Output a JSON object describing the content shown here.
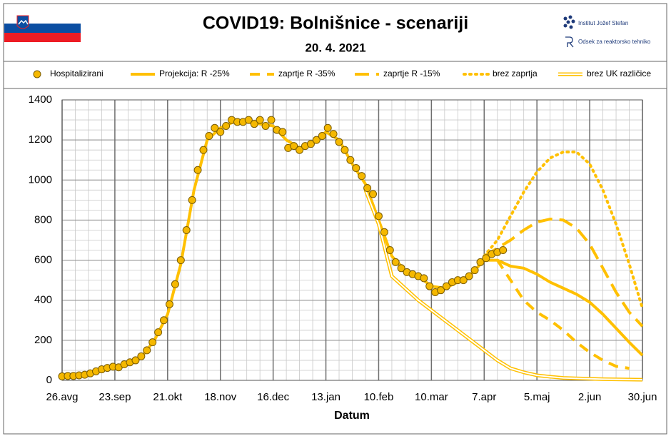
{
  "chart_data": {
    "type": "line",
    "title": "COVID19: Bolnišnice - scenariji",
    "subtitle": "20. 4. 2021",
    "institutions": [
      "Institut Jožef Stefan",
      "Odsek za reaktorsko tehniko"
    ],
    "xlabel": "Datum",
    "xlim": [
      0,
      308
    ],
    "xticks": [
      {
        "value": 0,
        "label": "26.avg"
      },
      {
        "value": 28,
        "label": "23.sep"
      },
      {
        "value": 56,
        "label": "21.okt"
      },
      {
        "value": 84,
        "label": "18.nov"
      },
      {
        "value": 112,
        "label": "16.dec"
      },
      {
        "value": 140,
        "label": "13.jan"
      },
      {
        "value": 168,
        "label": "10.feb"
      },
      {
        "value": 196,
        "label": "10.mar"
      },
      {
        "value": 224,
        "label": "7.apr"
      },
      {
        "value": 252,
        "label": "5.maj"
      },
      {
        "value": 280,
        "label": "2.jun"
      },
      {
        "value": 308,
        "label": "30.jun"
      }
    ],
    "x_minor_step": 7,
    "ylim": [
      0,
      1400
    ],
    "yticks": [
      0,
      200,
      400,
      600,
      800,
      1000,
      1200,
      1400
    ],
    "y_minor_step": 50,
    "grid": true,
    "series": [
      {
        "name": "Hospitalizirani",
        "style": "dots",
        "color": "#f5b800",
        "x": [
          0,
          3,
          6,
          9,
          12,
          15,
          18,
          21,
          24,
          27,
          30,
          33,
          36,
          39,
          42,
          45,
          48,
          51,
          54,
          57,
          60,
          63,
          66,
          69,
          72,
          75,
          78,
          81,
          84,
          87,
          90,
          93,
          96,
          99,
          102,
          105,
          108,
          111,
          114,
          117,
          120,
          123,
          126,
          129,
          132,
          135,
          138,
          141,
          144,
          147,
          150,
          153,
          156,
          159,
          162,
          165,
          168,
          171,
          174,
          177,
          180,
          183,
          186,
          189,
          192,
          195,
          198,
          201,
          204,
          207,
          210,
          213,
          216,
          219,
          222,
          225,
          228,
          231,
          234
        ],
        "values": [
          20,
          22,
          22,
          25,
          28,
          35,
          45,
          55,
          62,
          68,
          65,
          80,
          90,
          100,
          120,
          150,
          190,
          240,
          300,
          380,
          480,
          600,
          750,
          900,
          1050,
          1150,
          1220,
          1260,
          1240,
          1270,
          1300,
          1290,
          1290,
          1300,
          1280,
          1300,
          1270,
          1300,
          1250,
          1240,
          1160,
          1170,
          1150,
          1170,
          1180,
          1200,
          1220,
          1260,
          1230,
          1190,
          1150,
          1100,
          1060,
          1020,
          960,
          930,
          820,
          740,
          650,
          590,
          560,
          540,
          530,
          520,
          510,
          470,
          440,
          450,
          470,
          490,
          500,
          500,
          520,
          550,
          590,
          610,
          630,
          640,
          650
        ]
      },
      {
        "name": "Projekcija: R -25%",
        "style": "solid",
        "color": "#ffc000",
        "x": [
          0,
          7,
          14,
          21,
          28,
          35,
          42,
          49,
          56,
          63,
          70,
          77,
          84,
          91,
          98,
          105,
          112,
          119,
          126,
          133,
          140,
          147,
          154,
          161,
          168,
          175,
          182,
          189,
          196,
          203,
          210,
          217,
          224,
          231,
          238,
          245,
          252,
          259,
          266,
          273,
          280,
          287,
          294,
          301,
          308
        ],
        "values": [
          20,
          22,
          30,
          50,
          65,
          85,
          115,
          200,
          330,
          580,
          950,
          1200,
          1260,
          1290,
          1290,
          1280,
          1270,
          1200,
          1160,
          1180,
          1240,
          1200,
          1080,
          980,
          800,
          620,
          550,
          520,
          470,
          460,
          490,
          530,
          600,
          600,
          570,
          560,
          530,
          490,
          460,
          430,
          390,
          330,
          260,
          190,
          125
        ]
      },
      {
        "name": "zaprtje R -35%",
        "style": "dash",
        "color": "#ffc000",
        "x": [
          231,
          238,
          245,
          252,
          259,
          266,
          273,
          280,
          287,
          294,
          301
        ],
        "values": [
          600,
          500,
          400,
          340,
          300,
          250,
          190,
          140,
          100,
          70,
          60
        ]
      },
      {
        "name": "zaprtje R -15%",
        "style": "longdash",
        "color": "#ffc000",
        "x": [
          224,
          231,
          238,
          245,
          252,
          259,
          266,
          273,
          280,
          287,
          294,
          301,
          308
        ],
        "values": [
          620,
          660,
          700,
          750,
          790,
          805,
          800,
          760,
          680,
          560,
          440,
          340,
          270
        ]
      },
      {
        "name": "brez zaprtja",
        "style": "dot",
        "color": "#ffc000",
        "x": [
          224,
          231,
          238,
          245,
          252,
          259,
          266,
          273,
          280,
          287,
          294,
          301,
          308
        ],
        "values": [
          620,
          700,
          820,
          940,
          1040,
          1110,
          1140,
          1140,
          1080,
          950,
          780,
          580,
          360
        ]
      },
      {
        "name": "brez UK različice",
        "style": "double",
        "color": "#ffc000",
        "x": [
          161,
          168,
          175,
          182,
          189,
          196,
          203,
          210,
          217,
          224,
          231,
          238,
          245,
          252,
          259,
          266,
          273,
          280,
          287,
          294,
          301,
          308
        ],
        "values": [
          950,
          780,
          520,
          460,
          400,
          350,
          300,
          250,
          200,
          150,
          100,
          60,
          40,
          25,
          18,
          12,
          10,
          8,
          6,
          5,
          4,
          3
        ]
      }
    ]
  }
}
